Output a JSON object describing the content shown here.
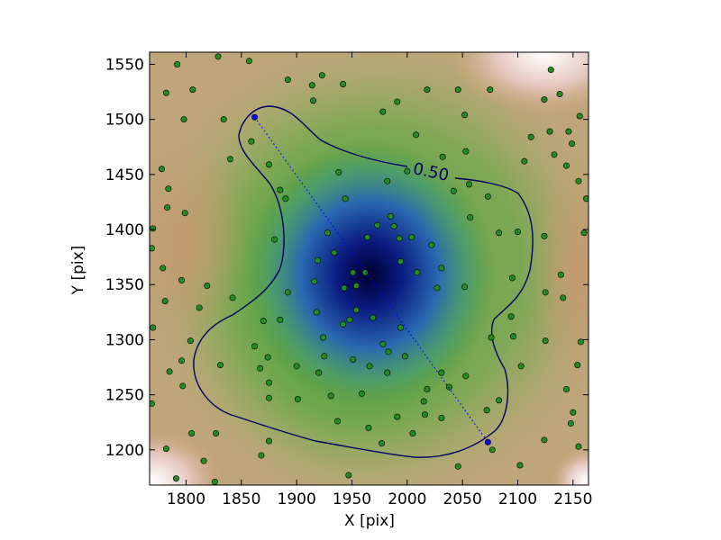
{
  "chart_data": {
    "type": "scatter",
    "xlabel": "X [pix]",
    "ylabel": "Y [pix]",
    "contour_label": "0.50",
    "xlim": [
      1767,
      2164
    ],
    "ylim": [
      1168,
      1561
    ],
    "xticks": [
      1800,
      1850,
      1900,
      1950,
      2000,
      2050,
      2100,
      2150
    ],
    "yticks": [
      1200,
      1250,
      1300,
      1350,
      1400,
      1450,
      1500,
      1550
    ],
    "series": [
      {
        "color": "#228b22",
        "x": [
          1792,
          1829,
          1857,
          1782,
          1806,
          1798,
          1834,
          1892,
          1914,
          1923,
          1942,
          1915,
          1978,
          1991,
          2018,
          2046,
          2075,
          2130,
          2124,
          2138,
          2156,
          2129,
          2146,
          2149,
          2133,
          2106,
          2144,
          2155,
          2162,
          1778,
          1784,
          1783,
          1799,
          1770,
          1769,
          1779,
          1796,
          1819,
          1812,
          1842,
          1781,
          1770,
          1804,
          1796,
          1785,
          1797,
          1769,
          1782,
          1791,
          1816,
          1826,
          1805,
          1827,
          1868,
          1875,
          1840,
          1859,
          1875,
          1885,
          1890,
          1880,
          1892,
          1870,
          1885,
          1862,
          1874,
          1867,
          1875,
          1875,
          1831,
          1900,
          1920,
          1901,
          1931,
          1937,
          1965,
          1977,
          2005,
          2016,
          2031,
          1947,
          2046,
          2077,
          2102,
          2072,
          2083,
          2096,
          2103,
          2094,
          2095,
          2083,
          2057,
          2056,
          2053,
          2032,
          2008,
          2000,
          1982,
          1938,
          1944,
          1928,
          1934,
          1919,
          1916,
          1918,
          1948,
          1943,
          1954,
          1951,
          1962,
          1964,
          1973,
          1985,
          1988,
          1993,
          1994,
          2009,
          2004,
          2022,
          2031,
          2027,
          1994,
          1978,
          1969,
          1954,
          1942,
          1924,
          1925,
          1951,
          1983,
          1966,
          1982,
          1998,
          2031,
          2053,
          2018,
          1991,
          1959,
          2015,
          2038,
          2052,
          2100,
          2124,
          2125,
          2139,
          2141,
          2157,
          2125,
          2154,
          2144,
          2150,
          2148,
          2155,
          2124,
          2076,
          2160,
          2112,
          2052,
          2073,
          2042
        ],
        "y": [
          1550,
          1557,
          1553,
          1524,
          1527,
          1500,
          1500,
          1536,
          1531,
          1540,
          1532,
          1517,
          1507,
          1516,
          1527,
          1527,
          1527,
          1545,
          1518,
          1523,
          1503,
          1489,
          1489,
          1478,
          1468,
          1462,
          1458,
          1444,
          1428,
          1455,
          1437,
          1420,
          1415,
          1401,
          1383,
          1365,
          1354,
          1349,
          1329,
          1338,
          1335,
          1311,
          1299,
          1281,
          1271,
          1258,
          1242,
          1201,
          1174,
          1190,
          1171,
          1215,
          1215,
          1195,
          1208,
          1464,
          1480,
          1459,
          1436,
          1428,
          1391,
          1343,
          1317,
          1318,
          1294,
          1284,
          1274,
          1261,
          1247,
          1277,
          1276,
          1270,
          1246,
          1249,
          1226,
          1220,
          1206,
          1215,
          1232,
          1229,
          1177,
          1185,
          1200,
          1186,
          1236,
          1245,
          1303,
          1276,
          1321,
          1356,
          1397,
          1411,
          1441,
          1471,
          1466,
          1486,
          1453,
          1444,
          1452,
          1428,
          1397,
          1379,
          1372,
          1353,
          1325,
          1318,
          1347,
          1349,
          1361,
          1361,
          1393,
          1404,
          1412,
          1403,
          1392,
          1371,
          1361,
          1393,
          1386,
          1365,
          1347,
          1311,
          1296,
          1320,
          1327,
          1314,
          1302,
          1285,
          1282,
          1289,
          1276,
          1270,
          1285,
          1270,
          1267,
          1255,
          1230,
          1251,
          1244,
          1257,
          1348,
          1398,
          1394,
          1343,
          1359,
          1338,
          1298,
          1299,
          1277,
          1255,
          1234,
          1224,
          1203,
          1209,
          1302,
          1397,
          1484,
          1504,
          1430,
          1435
        ]
      },
      {
        "color": "#0000ff",
        "linestyle": "dotted",
        "x": [
          1862,
          2073
        ],
        "y": [
          1502,
          1207
        ]
      }
    ]
  }
}
